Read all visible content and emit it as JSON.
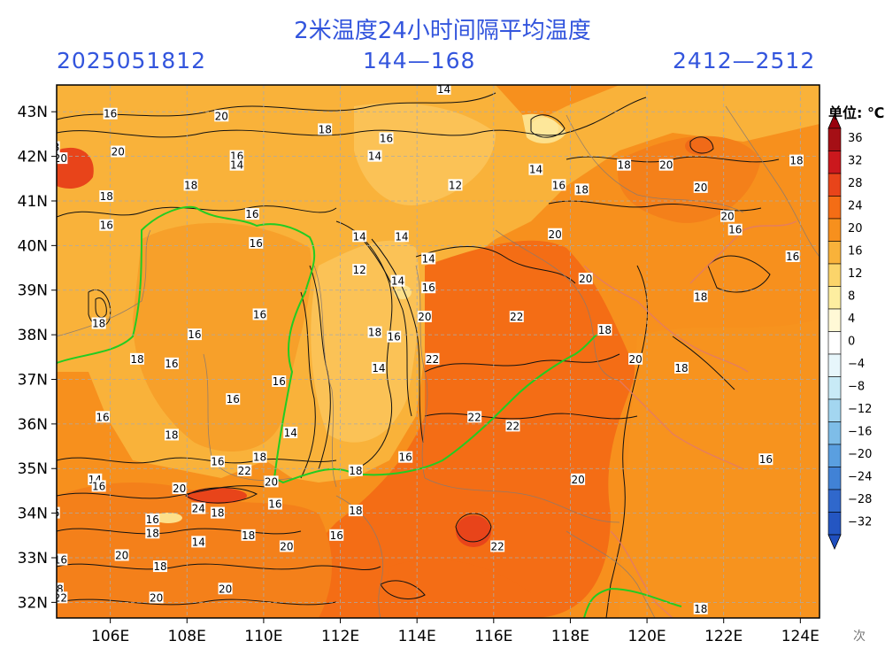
{
  "header": {
    "title": "2米温度24小时间隔平均温度",
    "date": "2025051812",
    "forecast": "144—168",
    "span": "2412—2512"
  },
  "legend": {
    "unit": "单位: ℃",
    "levels": [
      "36",
      "32",
      "28",
      "24",
      "20",
      "16",
      "12",
      "8",
      "4",
      "0",
      "−4",
      "−8",
      "−12",
      "−16",
      "−20",
      "−24",
      "−28",
      "−32"
    ],
    "colors": [
      "#a50f15",
      "#cb181d",
      "#e8441a",
      "#f46d15",
      "#f7901d",
      "#f9b23a",
      "#fbd46a",
      "#fdeea0",
      "#fff9d6",
      "#ffffff",
      "#e7f6fb",
      "#c8eaf6",
      "#a3d6f0",
      "#7ebde8",
      "#5a9fe0",
      "#4182d6",
      "#3068cc",
      "#2456c2"
    ],
    "cap_top_color": "#99000d",
    "cap_bottom_color": "#1f4fbf"
  },
  "map": {
    "lon_labels": [
      "106E",
      "108E",
      "110E",
      "112E",
      "114E",
      "116E",
      "118E",
      "120E",
      "122E",
      "124E"
    ],
    "lat_labels": [
      "43N",
      "42N",
      "41N",
      "40N",
      "39N",
      "38N",
      "37N",
      "36N",
      "35N",
      "34N",
      "33N",
      "32N"
    ],
    "contour_labels": [
      {
        "t": "14",
        "lon": 114.7,
        "lat": 43.5
      },
      {
        "t": "16",
        "lon": 106.0,
        "lat": 42.95
      },
      {
        "t": "20",
        "lon": 108.9,
        "lat": 42.9
      },
      {
        "t": "18",
        "lon": 111.6,
        "lat": 42.6
      },
      {
        "t": "16",
        "lon": 113.2,
        "lat": 42.4
      },
      {
        "t": "14",
        "lon": 112.9,
        "lat": 42.0
      },
      {
        "t": "16",
        "lon": 109.3,
        "lat": 42.0
      },
      {
        "t": "14",
        "lon": 109.3,
        "lat": 41.8
      },
      {
        "t": "18",
        "lon": 104.5,
        "lat": 42.2
      },
      {
        "t": "20",
        "lon": 104.7,
        "lat": 41.95
      },
      {
        "t": "20",
        "lon": 106.2,
        "lat": 42.1
      },
      {
        "t": "18",
        "lon": 119.4,
        "lat": 41.8
      },
      {
        "t": "20",
        "lon": 120.5,
        "lat": 41.8
      },
      {
        "t": "18",
        "lon": 123.9,
        "lat": 41.9
      },
      {
        "t": "14",
        "lon": 117.1,
        "lat": 41.7
      },
      {
        "t": "12",
        "lon": 115.0,
        "lat": 41.35
      },
      {
        "t": "16",
        "lon": 117.7,
        "lat": 41.35
      },
      {
        "t": "18",
        "lon": 118.3,
        "lat": 41.25
      },
      {
        "t": "20",
        "lon": 121.4,
        "lat": 41.3
      },
      {
        "t": "18",
        "lon": 108.1,
        "lat": 41.35
      },
      {
        "t": "18",
        "lon": 105.9,
        "lat": 41.1
      },
      {
        "t": "16",
        "lon": 109.7,
        "lat": 40.7
      },
      {
        "t": "20",
        "lon": 122.1,
        "lat": 40.65
      },
      {
        "t": "16",
        "lon": 105.9,
        "lat": 40.45
      },
      {
        "t": "16",
        "lon": 122.3,
        "lat": 40.35
      },
      {
        "t": "20",
        "lon": 117.6,
        "lat": 40.25
      },
      {
        "t": "14",
        "lon": 112.5,
        "lat": 40.2
      },
      {
        "t": "14",
        "lon": 113.6,
        "lat": 40.2
      },
      {
        "t": "16",
        "lon": 109.8,
        "lat": 40.05
      },
      {
        "t": "14",
        "lon": 114.3,
        "lat": 39.7
      },
      {
        "t": "16",
        "lon": 123.8,
        "lat": 39.75
      },
      {
        "t": "12",
        "lon": 112.5,
        "lat": 39.45
      },
      {
        "t": "20",
        "lon": 118.4,
        "lat": 39.25
      },
      {
        "t": "14",
        "lon": 113.5,
        "lat": 39.2
      },
      {
        "t": "16",
        "lon": 114.3,
        "lat": 39.05
      },
      {
        "t": "18",
        "lon": 121.4,
        "lat": 38.85
      },
      {
        "t": "16",
        "lon": 109.9,
        "lat": 38.45
      },
      {
        "t": "20",
        "lon": 114.2,
        "lat": 38.4
      },
      {
        "t": "22",
        "lon": 116.6,
        "lat": 38.4
      },
      {
        "t": "18",
        "lon": 105.7,
        "lat": 38.25
      },
      {
        "t": "16",
        "lon": 108.2,
        "lat": 38.0
      },
      {
        "t": "18",
        "lon": 112.9,
        "lat": 38.05
      },
      {
        "t": "16",
        "lon": 113.4,
        "lat": 37.95
      },
      {
        "t": "18",
        "lon": 118.9,
        "lat": 38.1
      },
      {
        "t": "18",
        "lon": 106.7,
        "lat": 37.45
      },
      {
        "t": "16",
        "lon": 107.6,
        "lat": 37.35
      },
      {
        "t": "20",
        "lon": 119.7,
        "lat": 37.45
      },
      {
        "t": "22",
        "lon": 114.4,
        "lat": 37.45
      },
      {
        "t": "14",
        "lon": 113.0,
        "lat": 37.25
      },
      {
        "t": "18",
        "lon": 120.9,
        "lat": 37.25
      },
      {
        "t": "16",
        "lon": 110.4,
        "lat": 36.95
      },
      {
        "t": "16",
        "lon": 109.2,
        "lat": 36.55
      },
      {
        "t": "16",
        "lon": 105.8,
        "lat": 36.15
      },
      {
        "t": "22",
        "lon": 115.5,
        "lat": 36.15
      },
      {
        "t": "22",
        "lon": 116.5,
        "lat": 35.95
      },
      {
        "t": "18",
        "lon": 107.6,
        "lat": 35.75
      },
      {
        "t": "14",
        "lon": 110.7,
        "lat": 35.8
      },
      {
        "t": "16",
        "lon": 113.7,
        "lat": 35.25
      },
      {
        "t": "16",
        "lon": 123.1,
        "lat": 35.2
      },
      {
        "t": "16",
        "lon": 108.8,
        "lat": 35.15
      },
      {
        "t": "18",
        "lon": 109.9,
        "lat": 35.25
      },
      {
        "t": "18",
        "lon": 112.4,
        "lat": 34.95
      },
      {
        "t": "22",
        "lon": 109.5,
        "lat": 34.95
      },
      {
        "t": "14",
        "lon": 105.6,
        "lat": 34.75
      },
      {
        "t": "16",
        "lon": 105.7,
        "lat": 34.6
      },
      {
        "t": "20",
        "lon": 107.8,
        "lat": 34.55
      },
      {
        "t": "20",
        "lon": 110.2,
        "lat": 34.7
      },
      {
        "t": "20",
        "lon": 118.2,
        "lat": 34.75
      },
      {
        "t": "24",
        "lon": 108.3,
        "lat": 34.1
      },
      {
        "t": "18",
        "lon": 108.8,
        "lat": 34.0
      },
      {
        "t": "16",
        "lon": 110.3,
        "lat": 34.2
      },
      {
        "t": "18",
        "lon": 112.4,
        "lat": 34.05
      },
      {
        "t": "16",
        "lon": 104.5,
        "lat": 34.0
      },
      {
        "t": "16",
        "lon": 107.1,
        "lat": 33.85
      },
      {
        "t": "18",
        "lon": 107.1,
        "lat": 33.55
      },
      {
        "t": "14",
        "lon": 108.3,
        "lat": 33.35
      },
      {
        "t": "18",
        "lon": 109.6,
        "lat": 33.5
      },
      {
        "t": "16",
        "lon": 111.9,
        "lat": 33.5
      },
      {
        "t": "20",
        "lon": 110.6,
        "lat": 33.25
      },
      {
        "t": "22",
        "lon": 116.1,
        "lat": 33.25
      },
      {
        "t": "16",
        "lon": 104.7,
        "lat": 32.95
      },
      {
        "t": "20",
        "lon": 106.3,
        "lat": 33.05
      },
      {
        "t": "18",
        "lon": 107.3,
        "lat": 32.8
      },
      {
        "t": "20",
        "lon": 109.0,
        "lat": 32.3
      },
      {
        "t": "18",
        "lon": 104.6,
        "lat": 32.3
      },
      {
        "t": "22",
        "lon": 104.7,
        "lat": 32.1
      },
      {
        "t": "20",
        "lon": 107.2,
        "lat": 32.1
      },
      {
        "t": "18",
        "lon": 121.4,
        "lat": 31.85
      }
    ]
  },
  "watermark": "次"
}
